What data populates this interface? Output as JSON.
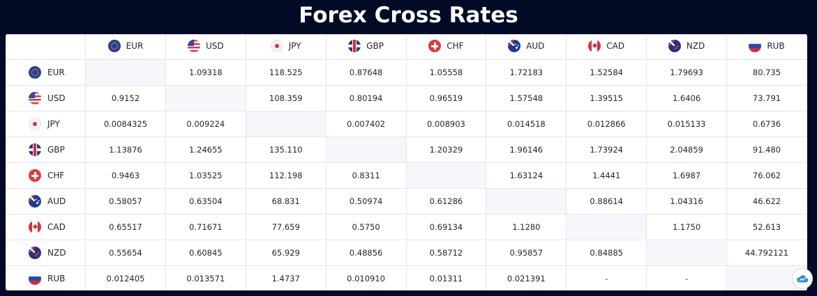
{
  "page_title": "Forex Cross Rates",
  "currencies": [
    "EUR",
    "USD",
    "JPY",
    "GBP",
    "CHF",
    "AUD",
    "CAD",
    "NZD",
    "RUB"
  ],
  "flag_icons": [
    "eu-flag-icon",
    "us-flag-icon",
    "jp-flag-icon",
    "gb-flag-icon",
    "ch-flag-icon",
    "au-flag-icon",
    "ca-flag-icon",
    "nz-flag-icon",
    "ru-flag-icon"
  ],
  "rows": [
    {
      "currency": "EUR",
      "values": [
        "",
        "1.09318",
        "118.525",
        "0.87648",
        "1.05558",
        "1.72183",
        "1.52584",
        "1.79693",
        "80.735"
      ]
    },
    {
      "currency": "USD",
      "values": [
        "0.9152",
        "",
        "108.359",
        "0.80194",
        "0.96519",
        "1.57548",
        "1.39515",
        "1.6406",
        "73.791"
      ]
    },
    {
      "currency": "JPY",
      "values": [
        "0.0084325",
        "0.009224",
        "",
        "0.007402",
        "0.008903",
        "0.014518",
        "0.012866",
        "0.015133",
        "0.6736"
      ]
    },
    {
      "currency": "GBP",
      "values": [
        "1.13876",
        "1.24655",
        "135.110",
        "",
        "1.20329",
        "1.96146",
        "1.73924",
        "2.04859",
        "91.480"
      ]
    },
    {
      "currency": "CHF",
      "values": [
        "0.9463",
        "1.03525",
        "112.198",
        "0.8311",
        "",
        "1.63124",
        "1.4441",
        "1.6987",
        "76.062"
      ]
    },
    {
      "currency": "AUD",
      "values": [
        "0.58057",
        "0.63504",
        "68.831",
        "0.50974",
        "0.61286",
        "",
        "0.88614",
        "1.04316",
        "46.622"
      ]
    },
    {
      "currency": "CAD",
      "values": [
        "0.65517",
        "0.71671",
        "77.659",
        "0.5750",
        "0.69134",
        "1.1280",
        "",
        "1.1750",
        "52.613"
      ]
    },
    {
      "currency": "NZD",
      "values": [
        "0.55654",
        "0.60845",
        "65.929",
        "0.48856",
        "0.58712",
        "0.95857",
        "0.84885",
        "",
        "44.792121"
      ]
    },
    {
      "currency": "RUB",
      "values": [
        "0.012405",
        "0.013571",
        "1.4737",
        "0.010910",
        "0.01311",
        "0.021391",
        "-",
        "-",
        ""
      ]
    }
  ],
  "widget_icon": "cloud-chart-icon",
  "colors": {
    "background": "#030a26",
    "diagonal": "#f6f7fb",
    "border": "#e3e6ed"
  }
}
